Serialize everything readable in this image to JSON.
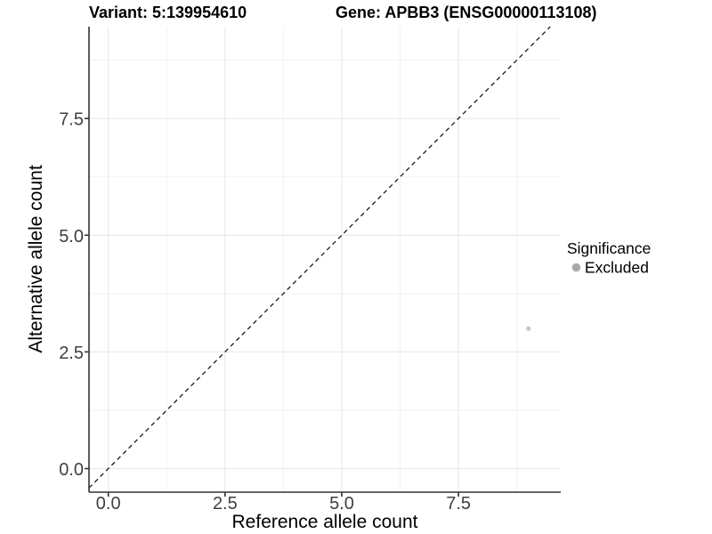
{
  "chart_data": {
    "type": "scatter",
    "title_variant": "Variant: 5:139954610",
    "title_gene": "Gene: APBB3 (ENSG00000113108)",
    "xlabel": "Reference allele count",
    "ylabel": "Alternative allele count",
    "xlim": [
      -0.414,
      9.69
    ],
    "ylim": [
      -0.505,
      9.466
    ],
    "x_ticks": [
      0,
      2.5,
      5,
      7.5
    ],
    "x_tick_labels": [
      "0.0",
      "2.5",
      "5.0",
      "7.5"
    ],
    "y_ticks": [
      0,
      2.5,
      5,
      7.5
    ],
    "y_tick_labels": [
      "0.0",
      "2.5",
      "5.0",
      "7.5"
    ],
    "x_minor_gridlines": [
      1.25,
      3.75,
      6.25,
      8.75
    ],
    "y_minor_gridlines": [
      1.25,
      3.75,
      6.25,
      8.75
    ],
    "grid": "major+minor",
    "points": [
      {
        "x": 9,
        "y": 3,
        "significance": "Excluded"
      }
    ],
    "identity_line": {
      "slope": 1,
      "intercept": 0,
      "style": "dashed"
    },
    "legend": {
      "title": "Significance",
      "position": "right",
      "entries": [
        {
          "label": "Excluded",
          "color": "#a9a9a9"
        }
      ]
    },
    "colors": {
      "background": "#ffffff",
      "point": "#c5c5c5",
      "legend_key": "#a9a9a9",
      "grid_major": "#e6e6e6",
      "grid_minor": "#f2f2f2",
      "axis_line": "#333333",
      "tick_mark": "#333333",
      "tick_label": "#404040",
      "dashed_line": "#1a1a1a"
    }
  }
}
